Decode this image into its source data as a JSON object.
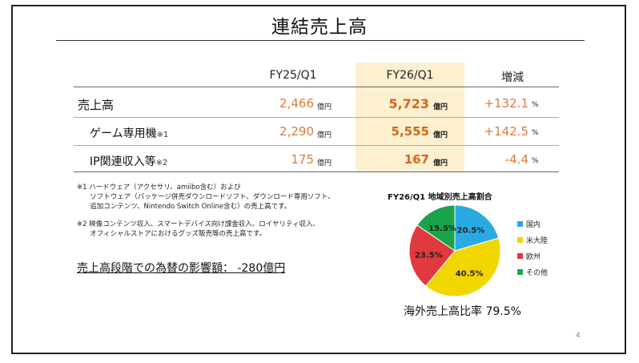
{
  "title": "連結売上高",
  "columns": [
    "FY25/Q1",
    "FY26/Q1",
    "増減"
  ],
  "rows": [
    {
      "label": "売上高",
      "note": "",
      "prev": "2,466",
      "curr": "5,723",
      "change": "+132.1"
    },
    {
      "label": "ゲーム専用機",
      "note": "※1",
      "prev": "2,290",
      "curr": "5,555",
      "change": "+142.5"
    },
    {
      "label": "IP関連収入等",
      "note": "※2",
      "prev": "175",
      "curr": "167",
      "change": "-4.4"
    }
  ],
  "unit_label": "億円",
  "pct_label": "%",
  "footnote1": "※1 ハードウェア（アクセサリ、amiibo含む）および\n      ソフトウェア（パッケージ併売ダウンロードソフト、ダウンロード専用ソフト、\n      追加コンテンツ、Nintendo Switch Online含む）の売上高です。",
  "footnote2": "※2 映像コンテンツ収入、スマートデバイス向け課金収入、ロイヤリティ収入、\n      オフィシャルストアにおけるグッズ販売等の売上高です。",
  "fx_impact": "売上高段階での為替の影響額：  -280億円",
  "chart_data": {
    "type": "pie",
    "title": "FY26/Q1 地域別売上高割合",
    "categories": [
      "国内",
      "米大陸",
      "欧州",
      "その他"
    ],
    "values": [
      20.5,
      40.5,
      23.5,
      15.5
    ],
    "value_labels": [
      "20.5%",
      "40.5%",
      "23.5%",
      "15.5%"
    ],
    "colors": [
      "#29abe2",
      "#f2d600",
      "#e0393e",
      "#1aa34a"
    ],
    "legend": "right"
  },
  "overseas_ratio": "海外売上高比率 79.5%",
  "page_number": "4"
}
